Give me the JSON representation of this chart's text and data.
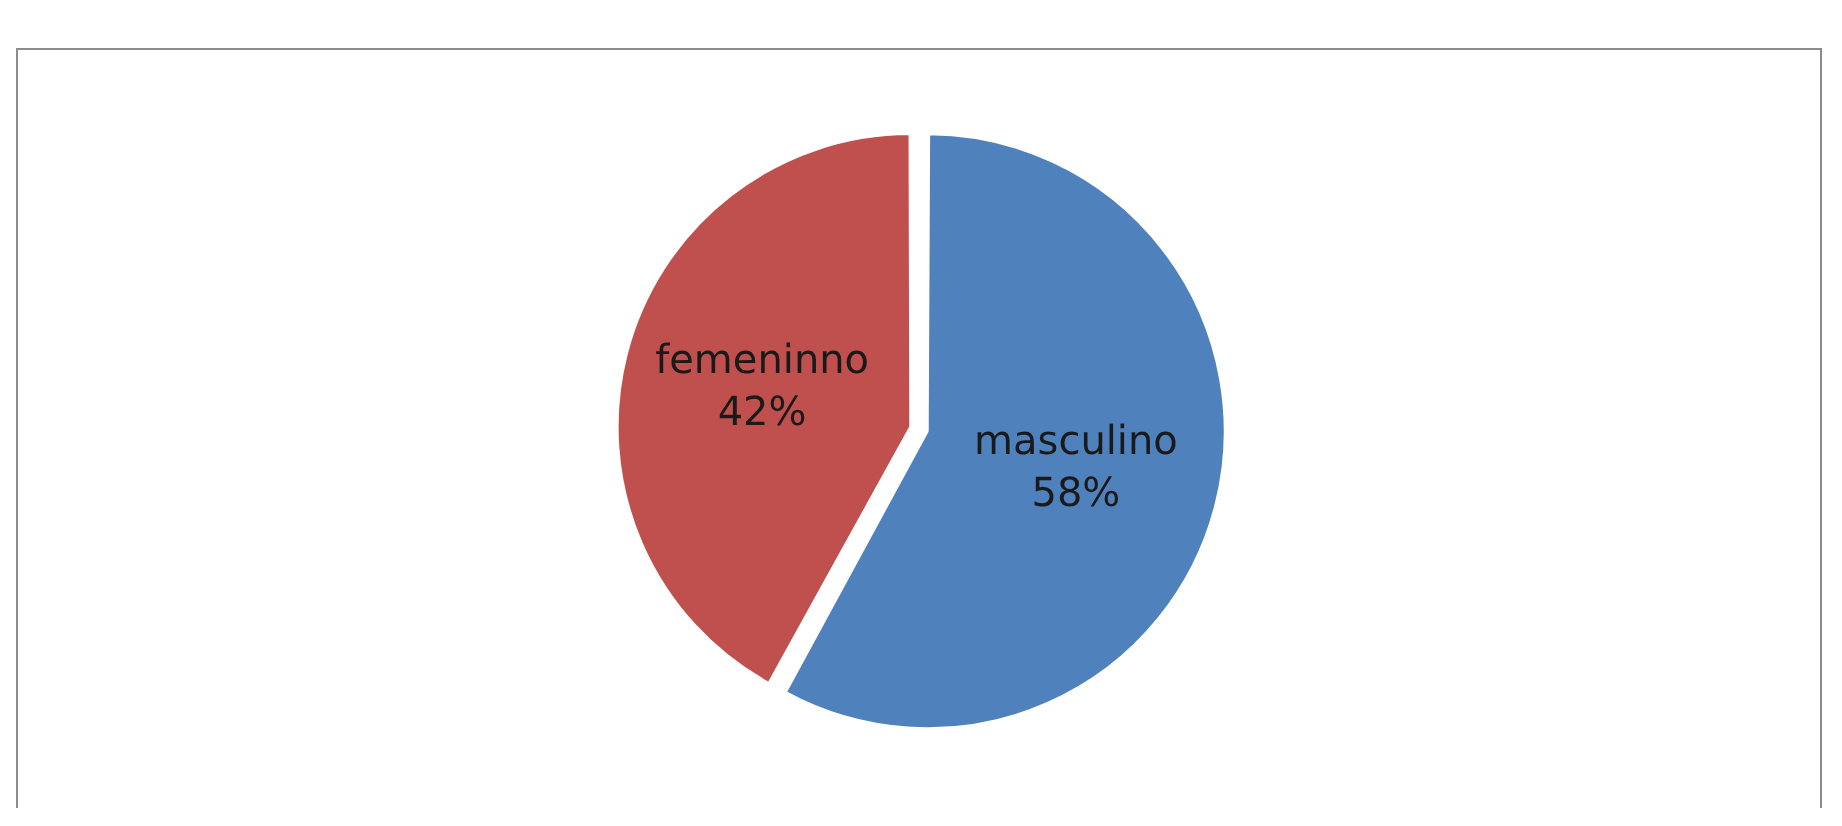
{
  "chart_data": {
    "type": "pie",
    "categories": [
      "masculino",
      "femeninno"
    ],
    "values": [
      58,
      42
    ],
    "colors": [
      "#4f81bd",
      "#c0504d"
    ],
    "value_labels": [
      "58%",
      "42%"
    ]
  }
}
